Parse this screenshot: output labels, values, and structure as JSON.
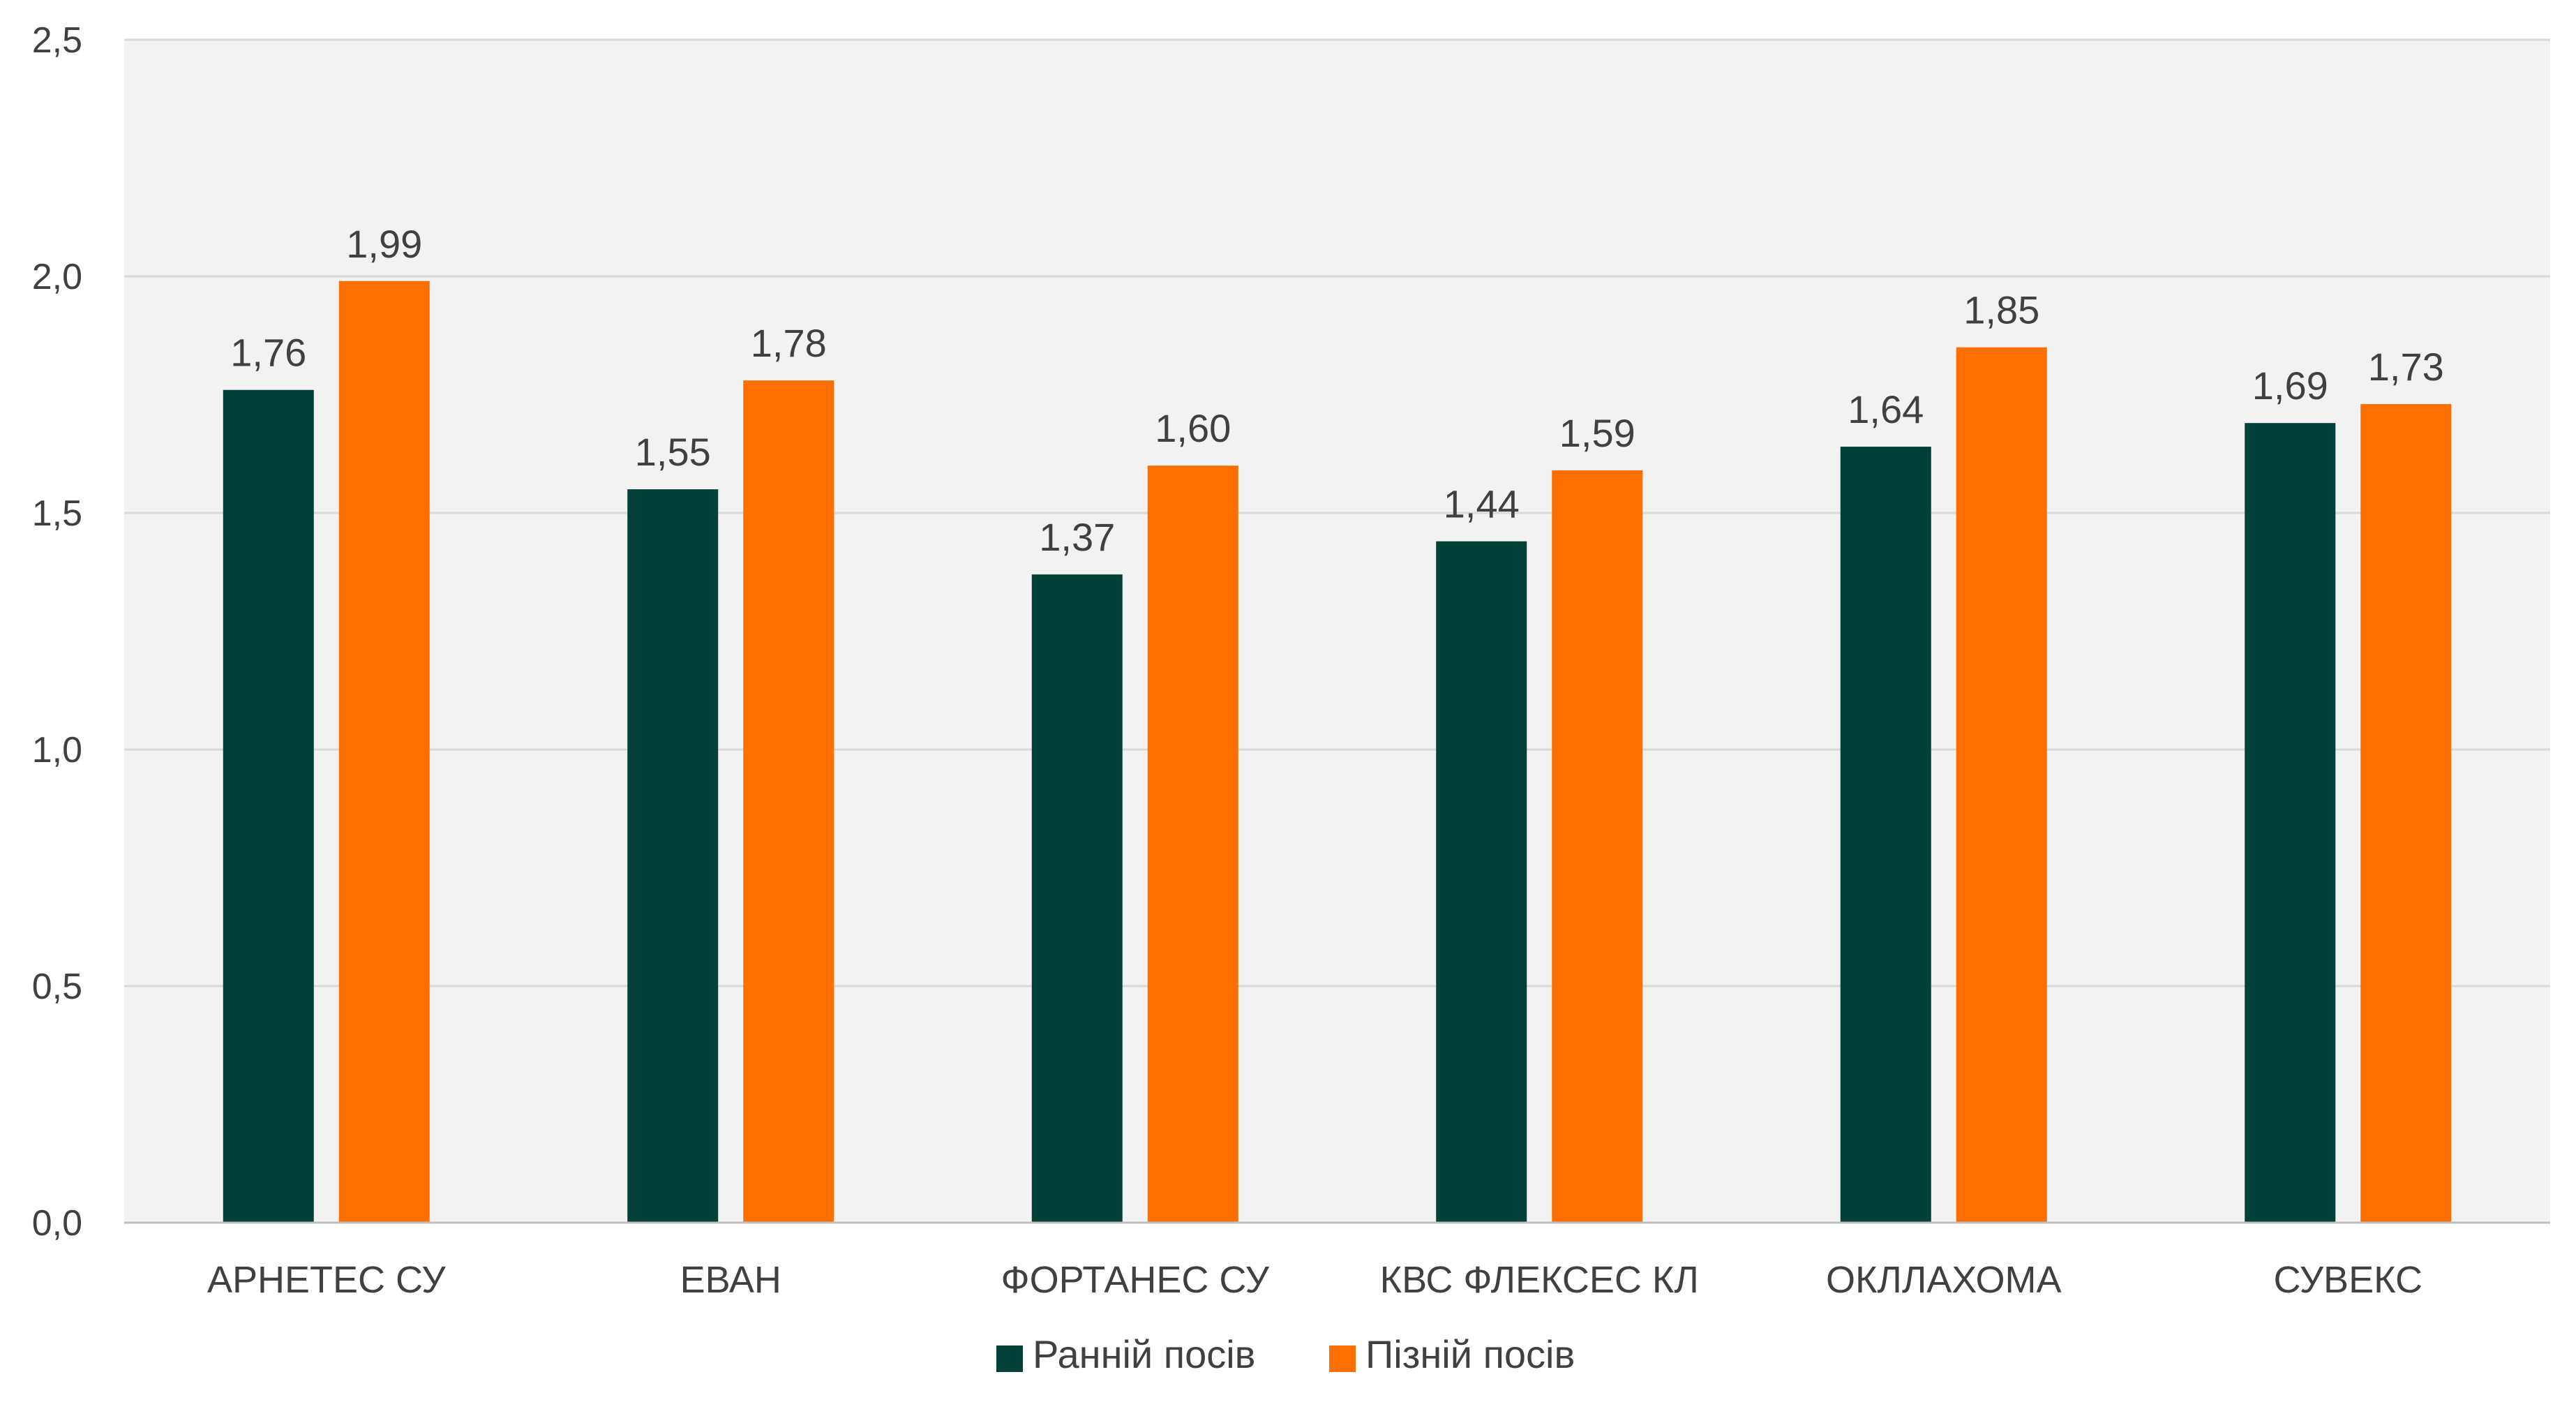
{
  "chart_data": {
    "type": "bar",
    "title": "",
    "xlabel": "",
    "ylabel": "",
    "ylim": [
      0,
      2.5
    ],
    "yticks": [
      "0,0",
      "0,5",
      "1,0",
      "1,5",
      "2,0",
      "2,5"
    ],
    "ytick_values": [
      0,
      0.5,
      1.0,
      1.5,
      2.0,
      2.5
    ],
    "grid": true,
    "legend_position": "bottom",
    "categories": [
      "АРНЕТЕС СУ",
      "ЕВАН",
      "ФОРТАНЕС СУ",
      "КВС ФЛЕКСЕС КЛ",
      "ОКЛЛАХОМА",
      "СУВЕКС"
    ],
    "series": [
      {
        "name": "Ранній посів",
        "color": "#02403a",
        "values": [
          1.76,
          1.55,
          1.37,
          1.44,
          1.64,
          1.69
        ],
        "labels": [
          "1,76",
          "1,55",
          "1,37",
          "1,44",
          "1,64",
          "1,69"
        ]
      },
      {
        "name": "Пізній посів",
        "color": "#ff6f00",
        "values": [
          1.99,
          1.78,
          1.6,
          1.59,
          1.85,
          1.73
        ],
        "labels": [
          "1,99",
          "1,78",
          "1,60",
          "1,59",
          "1,85",
          "1,73"
        ]
      }
    ]
  },
  "colors": {
    "plot_background": "#f2f2f2",
    "gridline": "#d9d9d9",
    "axis_line": "#bfbfbf",
    "text": "#404040"
  }
}
